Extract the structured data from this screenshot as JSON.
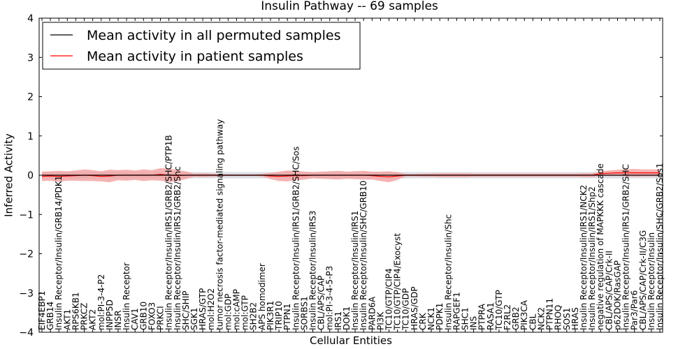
{
  "chart_data": {
    "type": "line",
    "title": "Insulin Pathway -- 69 samples",
    "xlabel": "Cellular Entities",
    "ylabel": "Inferred Activity",
    "ylim": [
      -4,
      4
    ],
    "yticks": [
      "4",
      "3",
      "2",
      "1",
      "0",
      "−1",
      "−2",
      "−3",
      "−4"
    ],
    "legend_position": "top-left",
    "colors": {
      "permuted": "#000000",
      "patient": "#ff0000",
      "patient_band": "#f4a0a0",
      "permuted_band": "#d0d4dc"
    },
    "categories": [
      "EIF4EBP1",
      "GRB14",
      "Insulin Receptor/Insulin/GRB14/PDK1",
      "AKT1",
      "RPS6KB1",
      "PRKCZ",
      "AKT2",
      "mol:PI-3-4-P2",
      "INPP5D",
      "INSR",
      "Insulin Receptor",
      "CAV1",
      "GRB10",
      "FOXO3",
      "PRKCI",
      "Insulin Receptor/Insulin/IRS1/GRB2/SHC/PTP1B",
      "Insulin Receptor/Insulin/IRS1/GRB2/Shc",
      "SHC/SHIP",
      "SGK1",
      "HRAS/GTP",
      "mol:H2O2",
      "tumor necrosis factor-mediated signaling pathway",
      "mol:GDP",
      "mol:cAMP",
      "mol:GTP",
      "SH2B2",
      "APS homodimer",
      "PIK3R1",
      "TRIP10",
      "PTPN1",
      "Insulin Receptor/Insulin/IRS1/GRB2/SHC/Sos",
      "SORBS1",
      "Insulin Receptor/Insulin/IRS3",
      "CBL/APS/CAP",
      "mol:PI-3-4-5-P3",
      "IRS1",
      "DOK1",
      "Insulin Receptor/Insulin/IRS1",
      "Insulin Receptor/Insulin/SHC/GRB10",
      "PARD6A",
      "PI3K",
      "TC10/GTP/CIP4",
      "TC10/GTP/CIP4/Exocyst",
      "TC10/GDP",
      "HRAS/GDP",
      "CRK",
      "NCK1",
      "PDPK1",
      "Insulin Receptor/Insulin/Shc",
      "RAPGEF1",
      "SHC1",
      "INS",
      "PTPRA",
      "RASA1",
      "TC10/GTP",
      "F2RL2",
      "GRB2",
      "PIK3CA",
      "CBL",
      "NCK2",
      "PTPN11",
      "RHOQ",
      "SOS1",
      "HRAS",
      "Insulin Receptor/Insulin/IRS1/NCK2",
      "Insulin Receptor/Insulin/IRS1/Shp2",
      "negative regulation of MAPKKK cascade",
      "CBL/APS/CAP/Crk-II",
      "p62DOK/RasGAP",
      "Insulin Receptor/Insulin/IRS1/GRB2/SHC",
      "Par3/Par6",
      "CBL/APS/CAP/Crk-II/C3G",
      "Insulin Receptor/Insulin",
      "Insulin Receptor/Insulin/SHC/GRB2/Sos1"
    ],
    "series": [
      {
        "name": "Mean activity in all permuted samples",
        "values": [
          0,
          0,
          0,
          0,
          0,
          0,
          0,
          0,
          0,
          0,
          0,
          0,
          0,
          0,
          0,
          0,
          0,
          0,
          0,
          0,
          0,
          0,
          0,
          0,
          0,
          0,
          0,
          0,
          0,
          0,
          0,
          0,
          0,
          0,
          0,
          0,
          0,
          0,
          0,
          0,
          0,
          0,
          0,
          0,
          0,
          0,
          0,
          0,
          0,
          0,
          0,
          0,
          0,
          0,
          0,
          0,
          0,
          0,
          0,
          0,
          0,
          0,
          0,
          0,
          0,
          0,
          0,
          0,
          0,
          0,
          0,
          0,
          0,
          0
        ],
        "band_halfwidth": [
          0.08,
          0.08,
          0.08,
          0.08,
          0.08,
          0.08,
          0.08,
          0.08,
          0.08,
          0.08,
          0.08,
          0.08,
          0.08,
          0.08,
          0.08,
          0.08,
          0.08,
          0.08,
          0.08,
          0.08,
          0.08,
          0.08,
          0.08,
          0.08,
          0.08,
          0.08,
          0.08,
          0.08,
          0.08,
          0.08,
          0.08,
          0.08,
          0.08,
          0.08,
          0.08,
          0.08,
          0.08,
          0.08,
          0.08,
          0.08,
          0.08,
          0.08,
          0.08,
          0.08,
          0.08,
          0.08,
          0.08,
          0.08,
          0.08,
          0.08,
          0.08,
          0.08,
          0.08,
          0.08,
          0.08,
          0.08,
          0.08,
          0.08,
          0.08,
          0.08,
          0.08,
          0.08,
          0.08,
          0.08,
          0.08,
          0.08,
          0.08,
          0.08,
          0.08,
          0.08,
          0.08,
          0.08,
          0.08,
          0.08
        ]
      },
      {
        "name": "Mean activity in patient samples",
        "values": [
          -0.03,
          -0.02,
          -0.03,
          -0.02,
          -0.01,
          0.0,
          -0.01,
          -0.03,
          -0.02,
          0.0,
          0.0,
          0.0,
          0.0,
          0.0,
          0.02,
          0.0,
          -0.01,
          0.0,
          0.0,
          0.0,
          0.0,
          0.0,
          0.0,
          0.0,
          0.0,
          0.0,
          0.0,
          -0.02,
          -0.03,
          -0.02,
          -0.01,
          -0.01,
          0.0,
          0.0,
          0.0,
          0.0,
          0.0,
          0.0,
          0.0,
          -0.01,
          -0.03,
          -0.04,
          -0.02,
          0.0,
          0.0,
          0.0,
          0.0,
          0.0,
          0.0,
          0.0,
          0.0,
          0.0,
          0.0,
          0.0,
          0.0,
          0.0,
          0.0,
          0.0,
          0.0,
          0.0,
          0.0,
          0.0,
          0.0,
          0.0,
          0.0,
          0.0,
          0.04,
          0.05,
          0.06,
          0.06,
          0.06,
          0.06,
          0.06,
          0.06
        ],
        "band_halfwidth": [
          0.12,
          0.12,
          0.14,
          0.12,
          0.13,
          0.15,
          0.14,
          0.13,
          0.16,
          0.13,
          0.14,
          0.12,
          0.15,
          0.13,
          0.16,
          0.17,
          0.14,
          0.1,
          0.04,
          0.05,
          0.04,
          0.03,
          0.02,
          0.02,
          0.02,
          0.02,
          0.03,
          0.08,
          0.12,
          0.14,
          0.12,
          0.1,
          0.08,
          0.09,
          0.1,
          0.11,
          0.09,
          0.1,
          0.11,
          0.1,
          0.12,
          0.14,
          0.1,
          0.03,
          0.03,
          0.04,
          0.04,
          0.05,
          0.05,
          0.05,
          0.05,
          0.04,
          0.04,
          0.04,
          0.04,
          0.04,
          0.04,
          0.04,
          0.04,
          0.04,
          0.04,
          0.04,
          0.04,
          0.04,
          0.05,
          0.05,
          0.06,
          0.07,
          0.08,
          0.09,
          0.1,
          0.09,
          0.09,
          0.09
        ]
      }
    ]
  }
}
